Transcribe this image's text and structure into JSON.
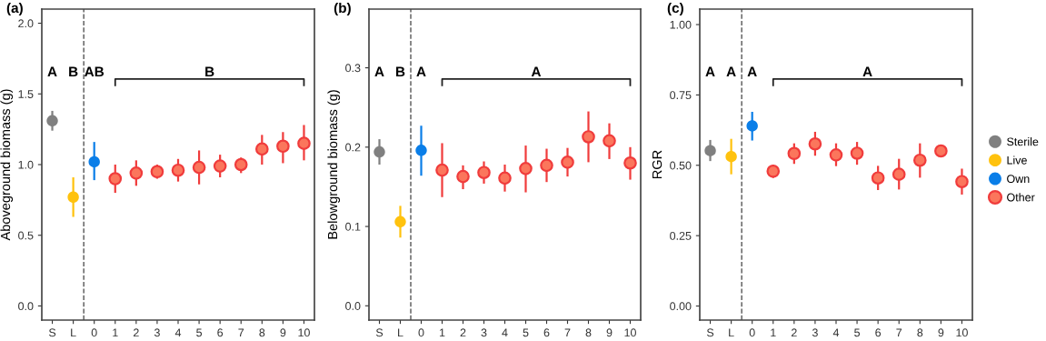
{
  "chart_data": [
    {
      "type": "scatter",
      "title": "(a)",
      "ylabel": "Aboveground biomass (g)",
      "categories": [
        "S",
        "L",
        "0",
        "1",
        "2",
        "3",
        "4",
        "5",
        "6",
        "7",
        "8",
        "9",
        "10"
      ],
      "ylim": [
        -0.1,
        2.1
      ],
      "yticks": [
        {
          "value": 0,
          "label": "0.0"
        },
        0.5,
        {
          "value": 1,
          "label": "1.0"
        },
        1.5,
        {
          "value": 2,
          "label": "2.0"
        }
      ],
      "marker": "circle",
      "grid": false,
      "legend": "right",
      "annotations": [
        "A",
        "B",
        "AB",
        "B"
      ],
      "series": [
        {
          "name": "Sterile",
          "color": "#808080",
          "values": [
            1.31,
            null,
            null,
            null,
            null,
            null,
            null,
            null,
            null,
            null,
            null,
            null,
            null
          ],
          "errors": [
            [
              1.24,
              1.38
            ],
            null,
            null,
            null,
            null,
            null,
            null,
            null,
            null,
            null,
            null,
            null,
            null
          ]
        },
        {
          "name": "Live",
          "color": "#ffc20e",
          "values": [
            null,
            0.77,
            null,
            null,
            null,
            null,
            null,
            null,
            null,
            null,
            null,
            null,
            null
          ],
          "errors": [
            null,
            [
              0.63,
              0.91
            ],
            null,
            null,
            null,
            null,
            null,
            null,
            null,
            null,
            null,
            null,
            null
          ]
        },
        {
          "name": "Own",
          "color": "#0a7ee8",
          "values": [
            null,
            null,
            1.02,
            null,
            null,
            null,
            null,
            null,
            null,
            null,
            null,
            null,
            null
          ],
          "errors": [
            null,
            null,
            [
              0.89,
              1.16
            ],
            null,
            null,
            null,
            null,
            null,
            null,
            null,
            null,
            null,
            null
          ]
        },
        {
          "name": "Other",
          "color": "#f03c3c",
          "values": [
            null,
            null,
            null,
            0.9,
            0.94,
            0.95,
            0.96,
            0.98,
            0.99,
            1.0,
            1.11,
            1.13,
            1.15
          ],
          "errors": [
            null,
            null,
            null,
            [
              0.8,
              1.0
            ],
            [
              0.85,
              1.03
            ],
            [
              0.9,
              1.0
            ],
            [
              0.88,
              1.04
            ],
            [
              0.86,
              1.1
            ],
            [
              0.91,
              1.07
            ],
            [
              0.94,
              1.05
            ],
            [
              1.0,
              1.21
            ],
            [
              1.01,
              1.23
            ],
            [
              1.03,
              1.28
            ]
          ]
        }
      ]
    },
    {
      "type": "scatter",
      "title": "(b)",
      "ylabel": "Belowground biomass (g)",
      "categories": [
        "S",
        "L",
        "0",
        "1",
        "2",
        "3",
        "4",
        "5",
        "6",
        "7",
        "8",
        "9",
        "10"
      ],
      "ylim": [
        -0.018,
        0.374
      ],
      "yticks": [
        {
          "value": 0,
          "label": "0.0"
        },
        0.1,
        0.2,
        0.3
      ],
      "marker": "circle",
      "grid": false,
      "legend": false,
      "annotations": [
        "A",
        "B",
        "A",
        "A"
      ],
      "series": [
        {
          "color": "#808080",
          "values": [
            0.194,
            null,
            null,
            null,
            null,
            null,
            null,
            null,
            null,
            null,
            null,
            null,
            null
          ],
          "errors": [
            [
              0.178,
              0.21
            ],
            null,
            null,
            null,
            null,
            null,
            null,
            null,
            null,
            null,
            null,
            null,
            null
          ]
        },
        {
          "color": "#ffc20e",
          "values": [
            null,
            0.106,
            null,
            null,
            null,
            null,
            null,
            null,
            null,
            null,
            null,
            null,
            null
          ],
          "errors": [
            null,
            [
              0.086,
              0.126
            ],
            null,
            null,
            null,
            null,
            null,
            null,
            null,
            null,
            null,
            null,
            null
          ]
        },
        {
          "color": "#0a7ee8",
          "values": [
            null,
            null,
            0.196,
            null,
            null,
            null,
            null,
            null,
            null,
            null,
            null,
            null,
            null
          ],
          "errors": [
            null,
            null,
            [
              0.164,
              0.227
            ],
            null,
            null,
            null,
            null,
            null,
            null,
            null,
            null,
            null,
            null
          ]
        },
        {
          "color": "#f03c3c",
          "values": [
            null,
            null,
            null,
            0.171,
            0.163,
            0.168,
            0.161,
            0.173,
            0.177,
            0.181,
            0.213,
            0.208,
            0.18
          ],
          "errors": [
            null,
            null,
            null,
            [
              0.137,
              0.205
            ],
            [
              0.147,
              0.177
            ],
            [
              0.154,
              0.182
            ],
            [
              0.144,
              0.178
            ],
            [
              0.143,
              0.202
            ],
            [
              0.156,
              0.198
            ],
            [
              0.163,
              0.199
            ],
            [
              0.181,
              0.245
            ],
            [
              0.185,
              0.23
            ],
            [
              0.159,
              0.2
            ]
          ]
        }
      ]
    },
    {
      "type": "scatter",
      "title": "(c)",
      "ylabel": "RGR",
      "categories": [
        "S",
        "L",
        "0",
        "1",
        "2",
        "3",
        "4",
        "5",
        "6",
        "7",
        "8",
        "9",
        "10"
      ],
      "ylim": [
        -0.05,
        1.055
      ],
      "yticks": [
        {
          "value": 0,
          "label": "0.00"
        },
        0.25,
        {
          "value": 0.5,
          "label": "0.50"
        },
        0.75,
        {
          "value": 1,
          "label": "1.00"
        }
      ],
      "marker": "circle",
      "grid": false,
      "annotations": [
        "A",
        "A",
        "A",
        "A"
      ],
      "series": [
        {
          "color": "#808080",
          "values": [
            0.552,
            null,
            null,
            null,
            null,
            null,
            null,
            null,
            null,
            null,
            null,
            null,
            null
          ],
          "errors": [
            [
              0.515,
              0.59
            ],
            null,
            null,
            null,
            null,
            null,
            null,
            null,
            null,
            null,
            null,
            null,
            null
          ]
        },
        {
          "color": "#ffc20e",
          "values": [
            null,
            0.531,
            null,
            null,
            null,
            null,
            null,
            null,
            null,
            null,
            null,
            null,
            null
          ],
          "errors": [
            null,
            [
              0.468,
              0.594
            ],
            null,
            null,
            null,
            null,
            null,
            null,
            null,
            null,
            null,
            null,
            null
          ]
        },
        {
          "color": "#0a7ee8",
          "values": [
            null,
            null,
            0.64,
            null,
            null,
            null,
            null,
            null,
            null,
            null,
            null,
            null,
            null
          ],
          "errors": [
            null,
            null,
            [
              0.588,
              0.69
            ],
            null,
            null,
            null,
            null,
            null,
            null,
            null,
            null,
            null,
            null
          ]
        },
        {
          "color": "#f03c3c",
          "values": [
            null,
            null,
            null,
            0.479,
            0.542,
            0.576,
            0.537,
            0.543,
            0.455,
            0.468,
            0.518,
            0.551,
            0.442
          ],
          "errors": [
            null,
            null,
            null,
            [
              0.455,
              0.502
            ],
            [
              0.505,
              0.578
            ],
            [
              0.534,
              0.619
            ],
            [
              0.497,
              0.578
            ],
            [
              0.502,
              0.583
            ],
            [
              0.412,
              0.498
            ],
            [
              0.414,
              0.523
            ],
            [
              0.456,
              0.578
            ],
            [
              0.532,
              0.57
            ],
            [
              0.396,
              0.488
            ]
          ]
        }
      ]
    }
  ]
}
